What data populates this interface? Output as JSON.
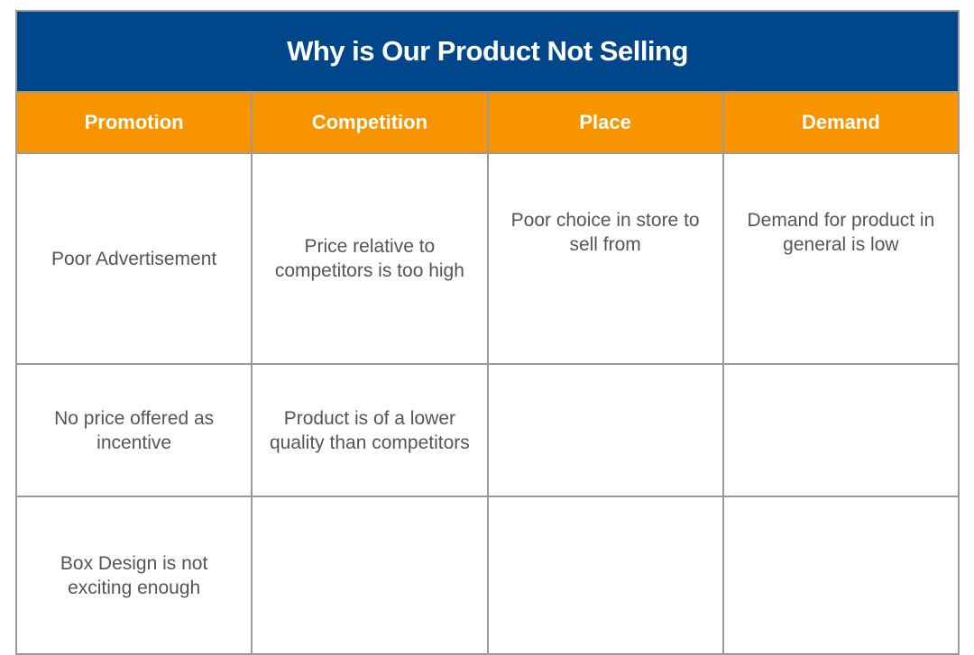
{
  "title": "Why is Our Product Not Selling",
  "colors": {
    "title_bg": "#00468A",
    "header_bg": "#F79400",
    "text": "#555555"
  },
  "columns": [
    "Promotion",
    "Competition",
    "Place",
    "Demand"
  ],
  "rows": [
    [
      "Poor Advertisement",
      "Price relative to competitors is too high",
      "Poor choice in store to sell from",
      "Demand for product in general is low"
    ],
    [
      "No price offered as incentive",
      "Product is of a lower quality than competitors",
      "",
      ""
    ],
    [
      "Box Design is not exciting enough",
      "",
      "",
      ""
    ]
  ]
}
